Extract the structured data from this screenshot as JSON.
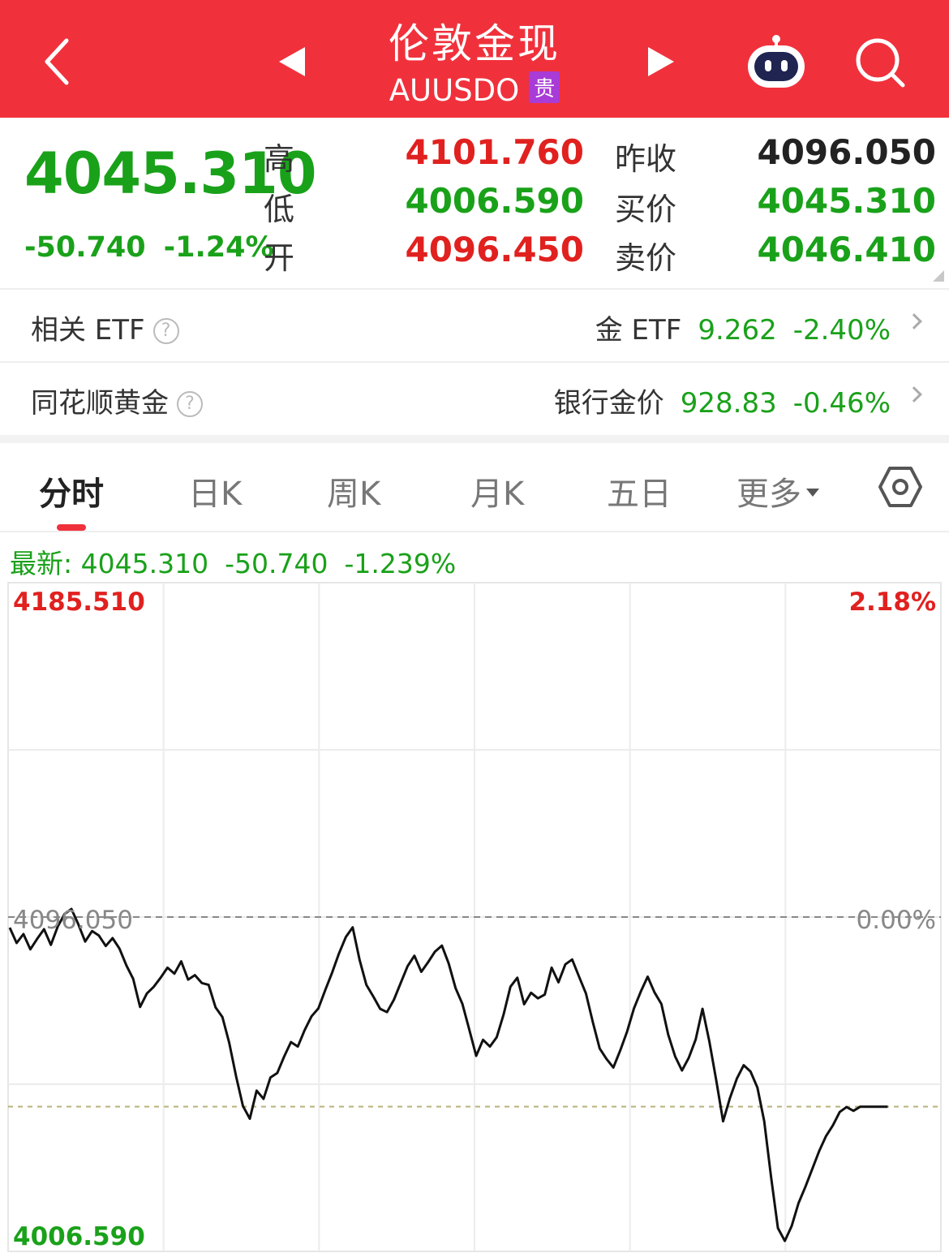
{
  "header": {
    "title": "伦敦金现",
    "subtitle": "AUUSDO",
    "badge": "贵",
    "icons": [
      "back-icon",
      "prev-arrow-icon",
      "next-arrow-icon",
      "robot-assistant-icon",
      "search-icon"
    ]
  },
  "quote": {
    "price": "4045.310",
    "change": "-50.740",
    "change_pct": "-1.24%",
    "high_label": "高",
    "high": "4101.760",
    "low_label": "低",
    "low": "4006.590",
    "open_label": "开",
    "open": "4096.450",
    "prev_close_label": "昨收",
    "prev_close": "4096.050",
    "bid_label": "买价",
    "bid": "4045.310",
    "ask_label": "卖价",
    "ask": "4046.410"
  },
  "rows": {
    "etf": {
      "label": "相关 ETF",
      "help": "?",
      "name": "金 ETF",
      "price": "9.262",
      "pct": "-2.40%"
    },
    "bank": {
      "label": "同花顺黄金",
      "help": "?",
      "name": "银行金价",
      "price": "928.83",
      "pct": "-0.46%"
    }
  },
  "tabs": [
    "分时",
    "日K",
    "周K",
    "月K",
    "五日",
    "更多"
  ],
  "latest": {
    "label": "最新: 4045.310",
    "change": "-50.740",
    "pct": "-1.239%"
  },
  "colors": {
    "up": "#e0211f",
    "down": "#1aa11a",
    "header": "#f0313c",
    "badge": "#a93bd6"
  },
  "chart_data": {
    "type": "line",
    "y_top_label": "4185.510",
    "y_mid_label": "4096.050",
    "y_bottom_label": "4006.590",
    "pct_top_label": "2.18%",
    "pct_mid_label": "0.00%",
    "reference_price": 4096.05,
    "ylim": [
      4006.59,
      4185.51
    ],
    "latest_value": 4045.31,
    "grid": true,
    "series": [
      {
        "values": [
          4093.2,
          4089.1,
          4091.5,
          4087.4,
          4090.2,
          4092.8,
          4088.6,
          4093.5,
          4096.9,
          4098.2,
          4094.1,
          4089.5,
          4092.3,
          4091.1,
          4088.3,
          4090.4,
          4087.6,
          4083.1,
          4079.5,
          4072.0,
          4075.6,
          4077.4,
          4079.8,
          4082.5,
          4080.9,
          4084.2,
          4079.3,
          4080.5,
          4078.4,
          4077.9,
          4071.9,
          4069.3,
          4062.4,
          4053.4,
          4045.5,
          4042.1,
          4049.6,
          4047.4,
          4053.1,
          4054.3,
          4058.7,
          4062.6,
          4061.4,
          4065.8,
          4069.5,
          4071.6,
          4076.5,
          4081.2,
          4086.3,
          4090.7,
          4093.3,
          4084.6,
          4077.9,
          4074.8,
          4071.5,
          4070.6,
          4073.9,
          4078.4,
          4082.9,
          4085.7,
          4081.4,
          4084.0,
          4086.8,
          4088.4,
          4083.6,
          4077.0,
          4072.8,
          4065.9,
          4058.9,
          4063.2,
          4061.4,
          4063.9,
          4070.0,
          4077.4,
          4079.8,
          4072.7,
          4075.8,
          4074.3,
          4075.3,
          4082.5,
          4078.6,
          4083.4,
          4084.7,
          4080.1,
          4075.6,
          4068.0,
          4060.9,
          4058.1,
          4055.8,
          4060.3,
          4065.4,
          4071.6,
          4076.1,
          4080.1,
          4075.9,
          4072.8,
          4064.6,
          4058.8,
          4055.0,
          4058.4,
          4063.3,
          4071.5,
          4062.7,
          4052.4,
          4041.4,
          4047.6,
          4052.8,
          4056.4,
          4054.7,
          4050.4,
          4041.4,
          4026.4,
          4012.8,
          4009.4,
          4013.4,
          4019.5,
          4023.9,
          4028.6,
          4033.4,
          4037.4,
          4040.3,
          4043.9,
          4045.2,
          4044.2,
          4045.3,
          4045.3,
          4045.3,
          4045.3,
          4045.3
        ]
      }
    ]
  }
}
